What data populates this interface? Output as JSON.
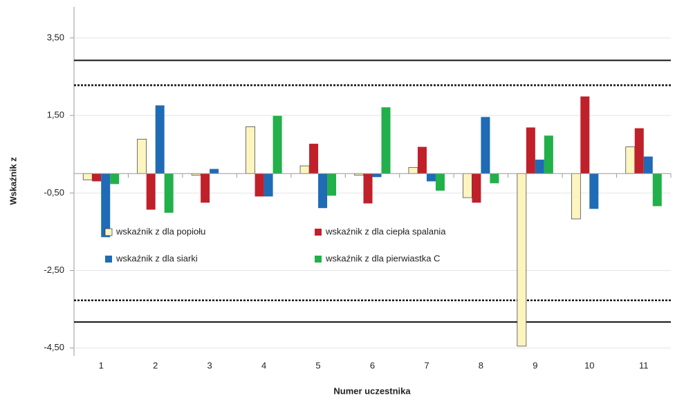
{
  "chart_data": {
    "type": "bar",
    "x_label": "Numer uczestnika",
    "y_label": "Wskaźnik z",
    "categories": [
      "1",
      "2",
      "3",
      "4",
      "5",
      "6",
      "7",
      "8",
      "9",
      "10",
      "11"
    ],
    "series": [
      {
        "name": "wskaźnik z dla popiołu",
        "color": "#fdf5bf",
        "outline": "#333333",
        "values": [
          -0.16,
          0.89,
          -0.04,
          1.21,
          0.2,
          -0.04,
          0.16,
          -0.62,
          -4.45,
          -1.17,
          0.69
        ]
      },
      {
        "name": "wskaźnik z dla ciepła spalania",
        "color": "#c0202a",
        "values": [
          -0.2,
          -0.93,
          -0.75,
          -0.59,
          0.77,
          -0.77,
          0.69,
          -0.75,
          1.19,
          1.99,
          1.17
        ]
      },
      {
        "name": "wskaźnik z dla siarki",
        "color": "#1f6bb5",
        "values": [
          -1.64,
          1.76,
          0.12,
          -0.59,
          -0.89,
          -0.09,
          -0.2,
          1.46,
          0.36,
          -0.91,
          0.44
        ]
      },
      {
        "name": "wskaźnik z dla pierwiastka C",
        "color": "#22b04b",
        "values": [
          -0.27,
          -1.01,
          0,
          1.49,
          -0.57,
          1.71,
          -0.44,
          -0.25,
          0.98,
          0,
          -0.84
        ]
      }
    ],
    "ylim": [
      -4.7,
      4.3
    ],
    "yticks": [
      {
        "value": -4.5,
        "label": "-4,50"
      },
      {
        "value": -2.5,
        "label": "-2,50"
      },
      {
        "value": -0.5,
        "label": "-0,50"
      },
      {
        "value": 1.5,
        "label": "1,50"
      },
      {
        "value": 3.5,
        "label": "3,50"
      }
    ],
    "reference_lines": [
      {
        "value": 2.92,
        "style": "solid"
      },
      {
        "value": 2.28,
        "style": "dotted"
      },
      {
        "value": -3.27,
        "style": "dotted"
      },
      {
        "value": -3.83,
        "style": "solid"
      }
    ],
    "legend": "inside"
  }
}
